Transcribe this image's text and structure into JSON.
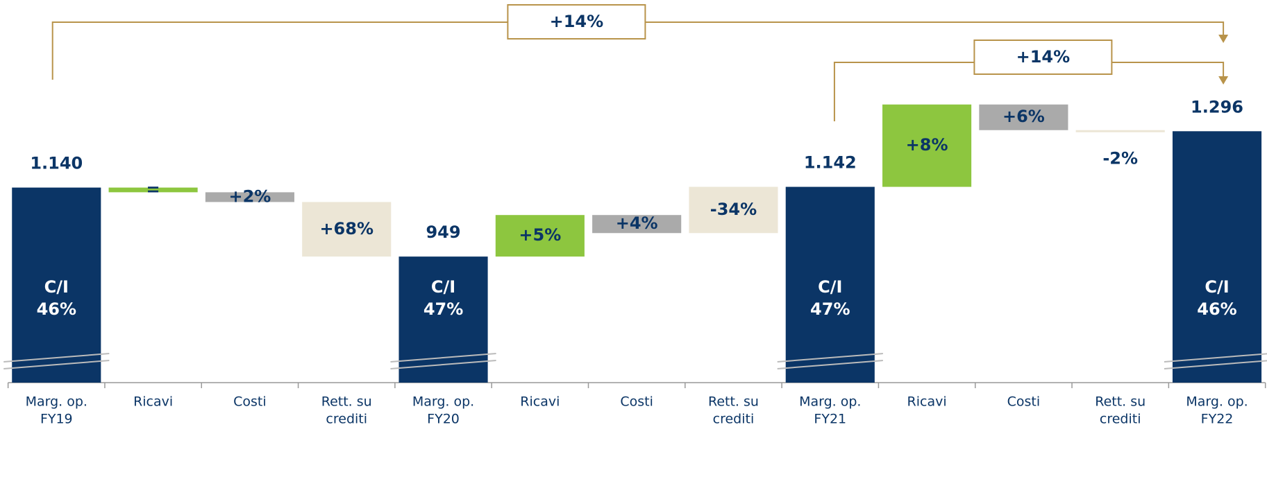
{
  "chart_data": {
    "type": "waterfall",
    "categories": [
      [
        "Marg. op.",
        "FY19"
      ],
      [
        "Ricavi"
      ],
      [
        "Costi"
      ],
      [
        "Rett. su",
        "crediti"
      ],
      [
        "Marg. op.",
        "FY20"
      ],
      [
        "Ricavi"
      ],
      [
        "Costi"
      ],
      [
        "Rett. su",
        "crediti"
      ],
      [
        "Marg. op.",
        "FY21"
      ],
      [
        "Ricavi"
      ],
      [
        "Costi"
      ],
      [
        "Rett. su",
        "crediti"
      ],
      [
        "Marg. op.",
        "FY22"
      ]
    ],
    "values": [
      1140,
      -13,
      -27,
      -151,
      949,
      115,
      -50,
      128,
      1142,
      228,
      -71,
      -3,
      1296
    ],
    "value_labels": [
      "1.140",
      "=",
      "+2%",
      "+68%",
      "949",
      "+5%",
      "+4%",
      "-34%",
      "1.142",
      "+8%",
      "+6%",
      "-2%",
      "1.296"
    ],
    "is_total": [
      true,
      false,
      false,
      false,
      true,
      false,
      false,
      false,
      true,
      false,
      false,
      false,
      true
    ],
    "colors": [
      "#0b3566",
      "#8dc63f",
      "#aaaaaa",
      "#ece6d6",
      "#0b3566",
      "#8dc63f",
      "#aaaaaa",
      "#ece6d6",
      "#0b3566",
      "#8dc63f",
      "#aaaaaa",
      "#ece6d6",
      "#0b3566"
    ],
    "inner_labels": [
      [
        "C/I",
        "46%"
      ],
      null,
      null,
      null,
      [
        "C/I",
        "47%"
      ],
      null,
      null,
      null,
      [
        "C/I",
        "47%"
      ],
      null,
      null,
      null,
      [
        "C/I",
        "46%"
      ]
    ],
    "annotations": [
      "+14%",
      "+14%"
    ],
    "ylim": [
      600,
      1500
    ],
    "axis_break": true
  }
}
